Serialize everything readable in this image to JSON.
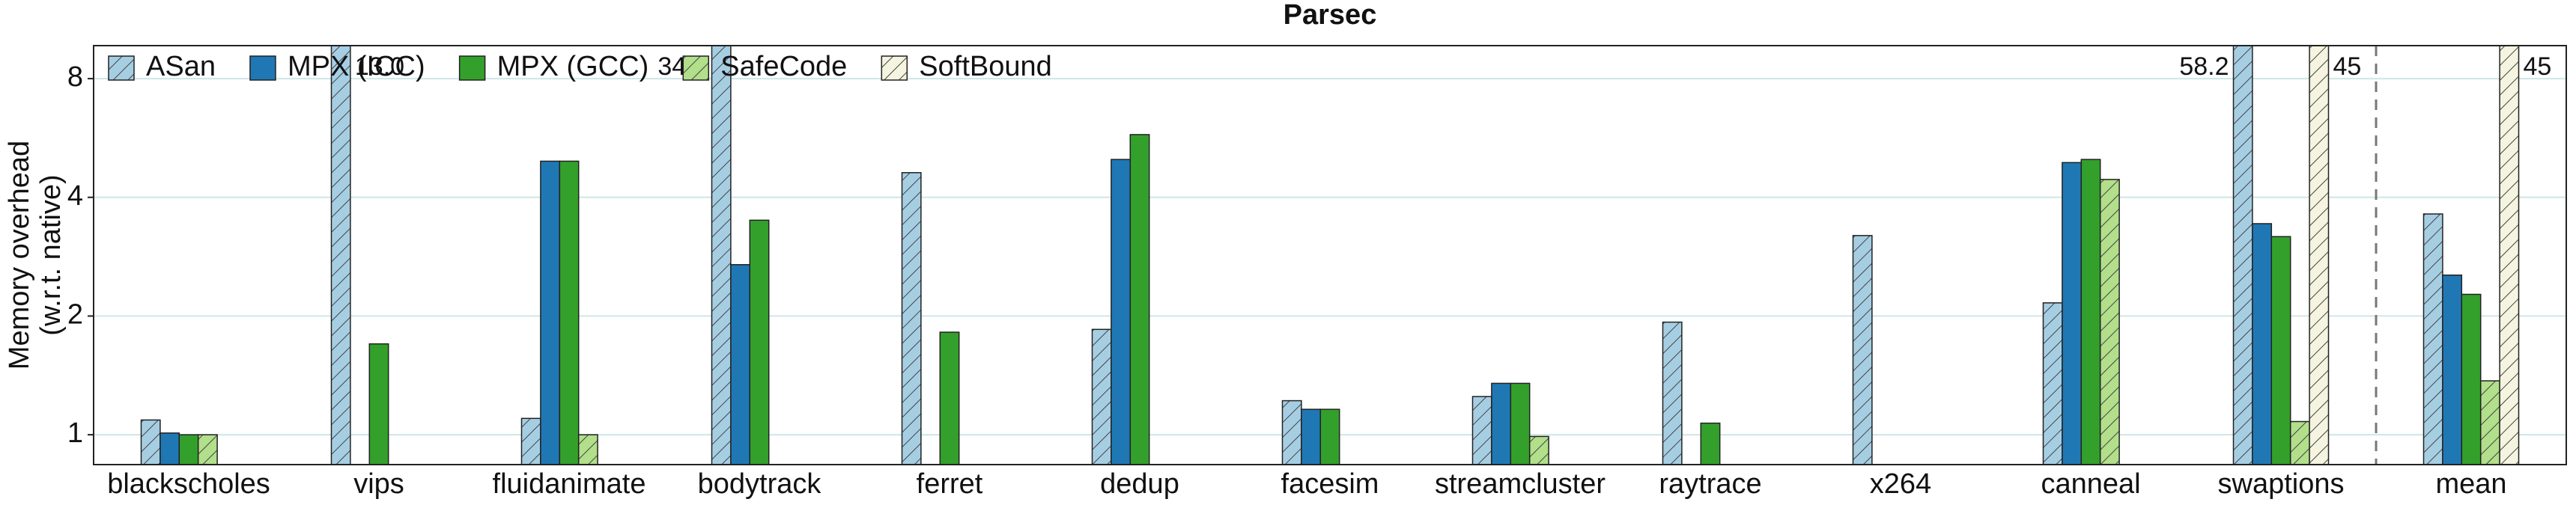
{
  "chart_data": {
    "type": "bar",
    "title": "Parsec",
    "ylabel": [
      "Memory overhead",
      "(w.r.t. native)"
    ],
    "categories": [
      "blackscholes",
      "vips",
      "fluidanimate",
      "bodytrack",
      "ferret",
      "dedup",
      "facesim",
      "streamcluster",
      "raytrace",
      "x264",
      "canneal",
      "swaptions",
      "mean"
    ],
    "series": [
      {
        "name": "ASan",
        "color": "#a6cee3",
        "hatch": true,
        "values": [
          1.09,
          13.0,
          1.1,
          34.1,
          4.62,
          1.85,
          1.22,
          1.25,
          1.93,
          3.2,
          2.16,
          58.2,
          3.63
        ],
        "value_labels": [
          null,
          "13.0",
          null,
          "34.1",
          null,
          null,
          null,
          null,
          null,
          null,
          null,
          "58.2",
          null
        ]
      },
      {
        "name": "MPX (ICC)",
        "color": "#1f78b4",
        "hatch": false,
        "values": [
          1.01,
          null,
          4.94,
          2.7,
          null,
          4.99,
          1.16,
          1.35,
          null,
          null,
          4.9,
          3.43,
          2.54
        ]
      },
      {
        "name": "MPX (GCC)",
        "color": "#33a02c",
        "hatch": false,
        "values": [
          1.0,
          1.7,
          4.94,
          3.5,
          1.82,
          5.77,
          1.16,
          1.35,
          1.07,
          null,
          4.99,
          3.18,
          2.27
        ]
      },
      {
        "name": "SafeCode",
        "color": "#b2df8a",
        "hatch": true,
        "values": [
          1.0,
          null,
          1.0,
          null,
          null,
          null,
          null,
          0.99,
          null,
          null,
          4.44,
          1.08,
          1.37
        ]
      },
      {
        "name": "SoftBound",
        "color": "#f4f4e0",
        "hatch": true,
        "values": [
          null,
          null,
          null,
          null,
          null,
          null,
          null,
          null,
          null,
          null,
          null,
          45,
          45
        ],
        "value_labels": [
          null,
          null,
          null,
          null,
          null,
          null,
          null,
          null,
          null,
          null,
          null,
          "45",
          "45"
        ]
      }
    ],
    "log_scale": true,
    "ylim": [
      0.84,
      9.7
    ],
    "yticks": [
      1,
      2,
      4,
      8
    ],
    "grid": true,
    "legend": "upper left"
  }
}
